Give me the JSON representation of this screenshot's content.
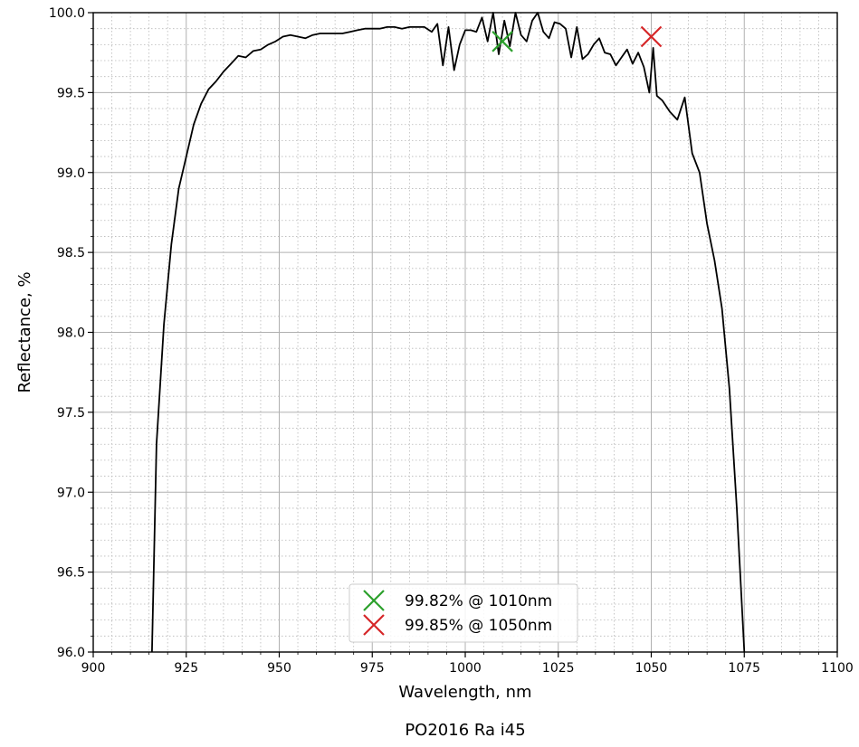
{
  "chart_data": {
    "type": "line",
    "xlabel": "Wavelength, nm",
    "ylabel": "Reflectance, %",
    "caption": "PO2016 Ra i45",
    "xlim": [
      900,
      1100
    ],
    "ylim": [
      96.0,
      100.0
    ],
    "x_ticks": [
      900,
      925,
      950,
      975,
      1000,
      1025,
      1050,
      1075,
      1100
    ],
    "x_tick_labels": [
      "900",
      "925",
      "950",
      "975",
      "1000",
      "1025",
      "1050",
      "1075",
      "1100"
    ],
    "y_ticks": [
      96.0,
      96.5,
      97.0,
      97.5,
      98.0,
      98.5,
      99.0,
      99.5,
      100.0
    ],
    "y_tick_labels": [
      "96.0",
      "96.5",
      "97.0",
      "97.5",
      "98.0",
      "98.5",
      "99.0",
      "99.5",
      "100.0"
    ],
    "grid": true,
    "minor_grid": true,
    "legend_position": "bottom-center",
    "series": [
      {
        "color": "#000000",
        "points": [
          [
            915.8,
            96.0
          ],
          [
            917.0,
            97.3
          ],
          [
            919.0,
            98.05
          ],
          [
            921.0,
            98.55
          ],
          [
            923.0,
            98.9
          ],
          [
            925.0,
            99.1
          ],
          [
            927.0,
            99.3
          ],
          [
            929.0,
            99.43
          ],
          [
            931.0,
            99.52
          ],
          [
            933.0,
            99.57
          ],
          [
            935.0,
            99.63
          ],
          [
            937.0,
            99.68
          ],
          [
            939.0,
            99.73
          ],
          [
            941.0,
            99.72
          ],
          [
            943.0,
            99.76
          ],
          [
            945.0,
            99.77
          ],
          [
            947.0,
            99.8
          ],
          [
            949.0,
            99.82
          ],
          [
            951.0,
            99.85
          ],
          [
            953.0,
            99.86
          ],
          [
            955.0,
            99.85
          ],
          [
            957.0,
            99.84
          ],
          [
            959.0,
            99.86
          ],
          [
            961.0,
            99.87
          ],
          [
            963.0,
            99.87
          ],
          [
            965.0,
            99.87
          ],
          [
            967.0,
            99.87
          ],
          [
            969.0,
            99.88
          ],
          [
            971.0,
            99.89
          ],
          [
            973.0,
            99.9
          ],
          [
            975.0,
            99.9
          ],
          [
            977.0,
            99.9
          ],
          [
            979.0,
            99.91
          ],
          [
            981.0,
            99.91
          ],
          [
            983.0,
            99.9
          ],
          [
            985.0,
            99.91
          ],
          [
            987.0,
            99.91
          ],
          [
            989.0,
            99.91
          ],
          [
            991.0,
            99.88
          ],
          [
            992.5,
            99.93
          ],
          [
            994.0,
            99.67
          ],
          [
            995.5,
            99.91
          ],
          [
            997.0,
            99.64
          ],
          [
            998.5,
            99.8
          ],
          [
            1000.0,
            99.89
          ],
          [
            1001.5,
            99.89
          ],
          [
            1003.0,
            99.88
          ],
          [
            1004.5,
            99.97
          ],
          [
            1006.0,
            99.82
          ],
          [
            1007.5,
            100.0
          ],
          [
            1009.0,
            99.74
          ],
          [
            1010.5,
            99.95
          ],
          [
            1012.0,
            99.79
          ],
          [
            1013.5,
            100.0
          ],
          [
            1015.0,
            99.86
          ],
          [
            1016.5,
            99.82
          ],
          [
            1018.0,
            99.95
          ],
          [
            1019.5,
            100.0
          ],
          [
            1021.0,
            99.88
          ],
          [
            1022.5,
            99.84
          ],
          [
            1024.0,
            99.94
          ],
          [
            1025.5,
            99.93
          ],
          [
            1027.0,
            99.9
          ],
          [
            1028.5,
            99.72
          ],
          [
            1030.0,
            99.91
          ],
          [
            1031.5,
            99.71
          ],
          [
            1033.0,
            99.74
          ],
          [
            1034.5,
            99.8
          ],
          [
            1036.0,
            99.84
          ],
          [
            1037.5,
            99.75
          ],
          [
            1039.0,
            99.74
          ],
          [
            1040.5,
            99.67
          ],
          [
            1042.0,
            99.72
          ],
          [
            1043.5,
            99.77
          ],
          [
            1045.0,
            99.68
          ],
          [
            1046.5,
            99.75
          ],
          [
            1048.0,
            99.66
          ],
          [
            1049.5,
            99.5
          ],
          [
            1050.5,
            99.78
          ],
          [
            1051.5,
            99.48
          ],
          [
            1053.0,
            99.45
          ],
          [
            1055.0,
            99.38
          ],
          [
            1057.0,
            99.33
          ],
          [
            1059.0,
            99.47
          ],
          [
            1061.0,
            99.12
          ],
          [
            1063.0,
            99.0
          ],
          [
            1065.0,
            98.68
          ],
          [
            1067.0,
            98.45
          ],
          [
            1069.0,
            98.15
          ],
          [
            1071.0,
            97.65
          ],
          [
            1073.0,
            96.9
          ],
          [
            1075.0,
            96.0
          ]
        ]
      }
    ],
    "markers": [
      {
        "label": "99.82% @ 1010nm",
        "x": 1010,
        "y": 99.82,
        "color": "#2ca02c",
        "shape": "x"
      },
      {
        "label": "99.85% @ 1050nm",
        "x": 1050,
        "y": 99.85,
        "color": "#d62728",
        "shape": "x"
      }
    ]
  }
}
